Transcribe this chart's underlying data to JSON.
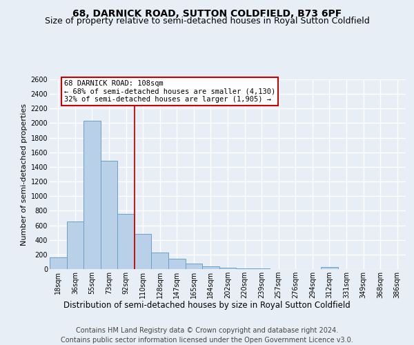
{
  "title": "68, DARNICK ROAD, SUTTON COLDFIELD, B73 6PF",
  "subtitle": "Size of property relative to semi-detached houses in Royal Sutton Coldfield",
  "xlabel": "Distribution of semi-detached houses by size in Royal Sutton Coldfield",
  "ylabel": "Number of semi-detached properties",
  "footer_line1": "Contains HM Land Registry data © Crown copyright and database right 2024.",
  "footer_line2": "Contains public sector information licensed under the Open Government Licence v3.0.",
  "categories": [
    "18sqm",
    "36sqm",
    "55sqm",
    "73sqm",
    "92sqm",
    "110sqm",
    "128sqm",
    "147sqm",
    "165sqm",
    "184sqm",
    "202sqm",
    "220sqm",
    "239sqm",
    "257sqm",
    "276sqm",
    "294sqm",
    "312sqm",
    "331sqm",
    "349sqm",
    "368sqm",
    "386sqm"
  ],
  "values": [
    165,
    650,
    2030,
    1480,
    760,
    480,
    230,
    140,
    80,
    40,
    20,
    10,
    5,
    0,
    0,
    0,
    30,
    0,
    0,
    0,
    0
  ],
  "bar_color": "#b8d0e8",
  "bar_edge_color": "#6aa0c8",
  "ylim_max": 2600,
  "ytick_step": 200,
  "property_label": "68 DARNICK ROAD: 108sqm",
  "annotation_line1": "← 68% of semi-detached houses are smaller (4,130)",
  "annotation_line2": "32% of semi-detached houses are larger (1,905) →",
  "vline_color": "#cc0000",
  "vline_x": 4.5,
  "background_color": "#e8eef6",
  "grid_color": "#ffffff",
  "title_fontsize": 10,
  "subtitle_fontsize": 9,
  "axis_label_fontsize": 8.5,
  "tick_fontsize": 7,
  "annot_fontsize": 7.5,
  "footer_fontsize": 7,
  "ylabel_fontsize": 8
}
